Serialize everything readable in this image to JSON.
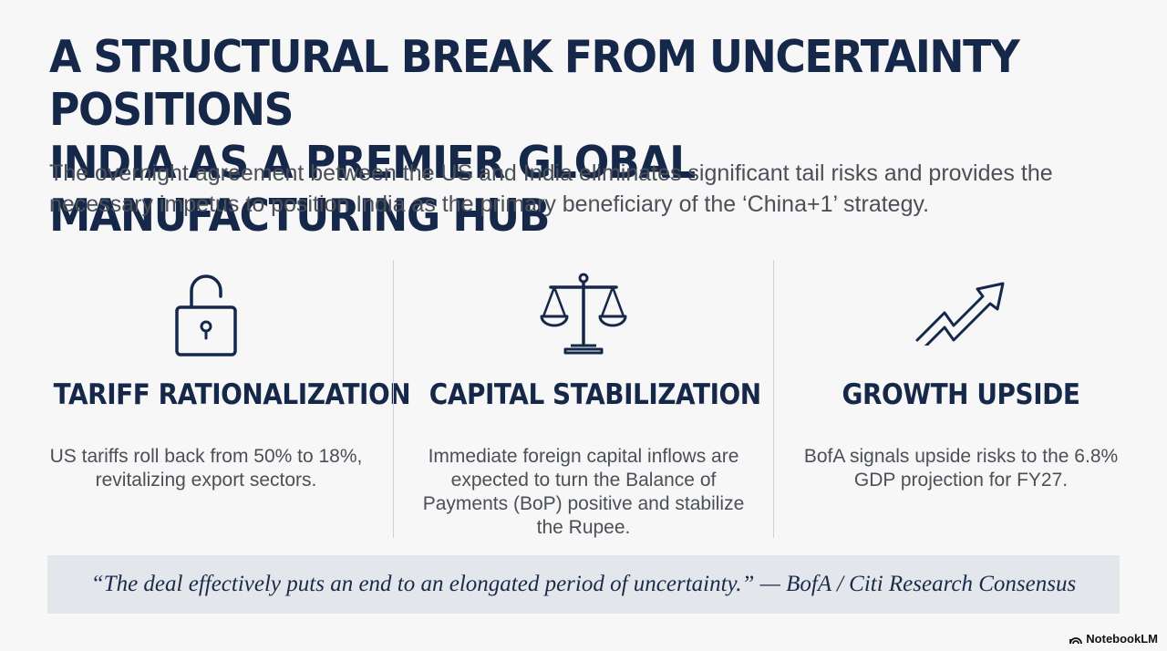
{
  "title": {
    "line1": "A STRUCTURAL BREAK FROM UNCERTAINTY POSITIONS",
    "line2": "INDIA AS A PREMIER GLOBAL MANUFACTURING HUB"
  },
  "subtitle": "The overnight agreement between the US and India eliminates significant tail risks and provides the necessary impetus to position India as the primary beneficiary of the ‘China+1’ strategy.",
  "columns": [
    {
      "icon": "unlocked-padlock-icon",
      "heading": "TARIFF RATIONALIZATION",
      "text": "US tariffs roll back from 50% to 18%, revitalizing export sectors."
    },
    {
      "icon": "balance-scale-icon",
      "heading": "CAPITAL STABILIZATION",
      "text": "Immediate foreign capital inflows are expected to turn the Balance of Payments (BoP) positive and stabilize the Rupee."
    },
    {
      "icon": "trending-up-arrow-icon",
      "heading": "GROWTH UPSIDE",
      "text": "BofA signals upside risks to the 6.8% GDP projection for FY27."
    }
  ],
  "quote": "“The deal effectively puts an end to an elongated period of uncertainty.” — BofA / Citi Research Consensus",
  "brand": {
    "icon": "notebooklm-logo-icon",
    "label": "NotebookLM"
  },
  "colors": {
    "navy": "#16284a",
    "body_text": "#4b4f57",
    "quote_bg": "#e3e7ec",
    "background": "#f7f7f7"
  }
}
